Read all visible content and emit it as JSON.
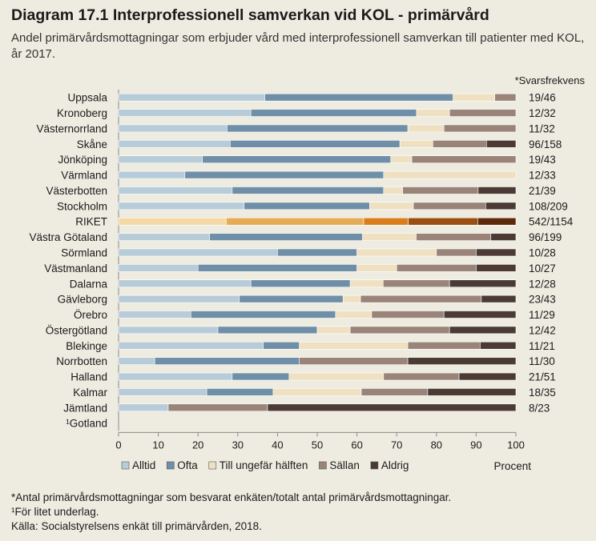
{
  "header": {
    "title": "Diagram 17.1 Interprofessionell samverkan vid KOL - primärvård",
    "subtitle": "Andel primärvårdsmottagningar som erbjuder vård med interprofessionell samverkan till patienter med KOL, år 2017."
  },
  "chart_data": {
    "type": "bar",
    "orientation": "horizontal",
    "stacked": true,
    "xlabel": "Procent",
    "xlim": [
      0,
      100
    ],
    "xticks": [
      "0",
      "10",
      "20",
      "30",
      "40",
      "50",
      "60",
      "70",
      "80",
      "90",
      "100"
    ],
    "response_rate_header": "*Svarsfrekvens",
    "categories": [
      "Uppsala",
      "Kronoberg",
      "Västernorrland",
      "Skåne",
      "Jönköping",
      "Värmland",
      "Västerbotten",
      "Stockholm",
      "RIKET",
      "Västra Götaland",
      "Sörmland",
      "Västmanland",
      "Dalarna",
      "Gävleborg",
      "Örebro",
      "Östergötland",
      "Blekinge",
      "Norrbotten",
      "Halland",
      "Kalmar",
      "Jämtland",
      "¹Gotland"
    ],
    "response_rates": [
      "19/46",
      "12/32",
      "11/32",
      "96/158",
      "19/43",
      "12/33",
      "21/39",
      "108/209",
      "542/1154",
      "96/199",
      "10/28",
      "10/27",
      "12/28",
      "23/43",
      "11/29",
      "12/42",
      "11/21",
      "11/30",
      "21/51",
      "18/35",
      "8/23",
      ""
    ],
    "highlight_category": "RIKET",
    "series": [
      {
        "name": "Alltid",
        "values": [
          36.8,
          33.3,
          27.3,
          28.1,
          21.1,
          16.7,
          28.6,
          31.6,
          27.1,
          22.9,
          40.0,
          20.0,
          33.3,
          30.4,
          18.2,
          25.0,
          36.4,
          9.1,
          28.6,
          22.2,
          12.5,
          null
        ]
      },
      {
        "name": "Ofta",
        "values": [
          47.4,
          41.7,
          45.5,
          42.7,
          47.4,
          50.0,
          38.1,
          31.6,
          34.6,
          38.5,
          20.0,
          40.0,
          25.0,
          26.1,
          36.4,
          25.0,
          9.1,
          36.4,
          14.3,
          16.7,
          0,
          null
        ]
      },
      {
        "name": "Till ungefär hälften",
        "values": [
          10.5,
          8.3,
          9.1,
          8.3,
          5.3,
          33.3,
          4.8,
          11.0,
          11.2,
          13.5,
          20.0,
          10.0,
          8.3,
          4.4,
          9.1,
          8.3,
          27.3,
          0,
          23.8,
          22.2,
          0,
          null
        ]
      },
      {
        "name": "Sällan",
        "values": [
          5.3,
          16.7,
          18.1,
          13.5,
          26.2,
          0,
          19.0,
          18.2,
          17.5,
          18.8,
          10.0,
          20.0,
          16.7,
          30.4,
          18.2,
          25.0,
          18.2,
          27.3,
          19.0,
          16.7,
          25.0,
          null
        ]
      },
      {
        "name": "Aldrig",
        "values": [
          0,
          0,
          0,
          7.4,
          0,
          0,
          9.5,
          7.6,
          9.6,
          6.3,
          10.0,
          10.0,
          16.7,
          8.7,
          18.1,
          16.7,
          9.0,
          27.2,
          14.3,
          22.2,
          62.5,
          null
        ]
      }
    ]
  },
  "colors": {
    "background": "#eeece1",
    "series": [
      "#b7cbd9",
      "#6f8fa8",
      "#efe0c2",
      "#9a847a",
      "#4b3b34"
    ],
    "riket_series": [
      "#f4d9a6",
      "#e6ab55",
      "#d97e1a",
      "#9a4e12",
      "#5c2a0a"
    ]
  },
  "footnotes": {
    "line1": "*Antal primärvårdsmottagningar som besvarat enkäten/totalt antal primärvårdsmottagningar.",
    "line2": "¹För litet underlag.",
    "line3": "Källa:  Socialstyrelsens enkät till primärvården, 2018."
  }
}
